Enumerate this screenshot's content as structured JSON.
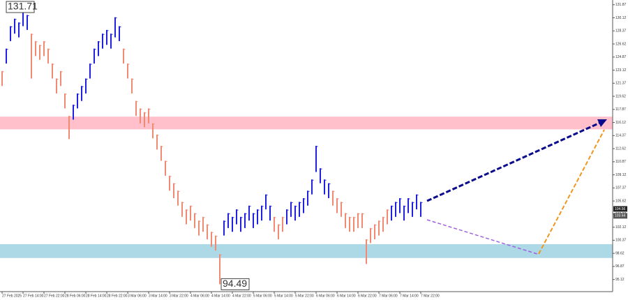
{
  "chart_data": {
    "type": "ohlc",
    "x": [
      "27 Feb 2025",
      null,
      null,
      null,
      null,
      "27 Feb 14:00",
      null,
      null,
      null,
      null,
      "27 Feb 22:00",
      null,
      null,
      null,
      null,
      "28 Feb 06:00",
      null,
      null,
      null,
      null,
      "28 Feb 14:00",
      null,
      null,
      null,
      null,
      "28 Feb 22:00",
      null,
      null,
      null,
      null,
      "3 Mar 06:00",
      null,
      null,
      null,
      null,
      "3 Mar 14:00",
      null,
      null,
      null,
      null,
      "3 Mar 22:00",
      null,
      null,
      null,
      null,
      "4 Mar 06:00",
      null,
      null,
      null,
      null,
      "4 Mar 14:00",
      null,
      null,
      null,
      null,
      "4 Mar 22:00",
      null,
      null,
      null,
      null,
      "5 Mar 06:00",
      null,
      null,
      null,
      null,
      "5 Mar 14:00",
      null,
      null,
      null,
      null,
      "5 Mar 22:00",
      null,
      null,
      null,
      null,
      "6 Mar 06:00",
      null,
      null,
      null,
      null,
      "6 Mar 14:00",
      null,
      null,
      null,
      null,
      "6 Mar 22:00",
      null,
      null,
      null,
      null,
      "7 Mar 06:00",
      null,
      null,
      null,
      null,
      "7 Mar 14:00",
      null,
      null,
      null,
      null,
      "7 Mar 22:00"
    ],
    "high": [
      123,
      126,
      129,
      130,
      129.5,
      131.71,
      130.5,
      128,
      127,
      126.5,
      127,
      126,
      124,
      122,
      123,
      120,
      117,
      118.5,
      120,
      121,
      122,
      124,
      126,
      127,
      128,
      128.5,
      128,
      130.2,
      129,
      126,
      124,
      122,
      119,
      118,
      117.5,
      118,
      116,
      114.5,
      113,
      111,
      109,
      108,
      107,
      105.5,
      104.5,
      105,
      104,
      103,
      103.5,
      102.5,
      101.5,
      101,
      98.5,
      103,
      104,
      103.5,
      104.5,
      103.5,
      104,
      105,
      104,
      104.5,
      105,
      106.5,
      105,
      103.5,
      102.5,
      103.5,
      104.5,
      105.5,
      105,
      105.5,
      106,
      107,
      108.5,
      113,
      110,
      108.5,
      108,
      107,
      106,
      105.5,
      104,
      103.5,
      103.5,
      104,
      104,
      100.5,
      102,
      102.5,
      103,
      103.5,
      104.5,
      105,
      105.5,
      106,
      105,
      106,
      105.5,
      106.5,
      105.5
    ],
    "low": [
      121,
      124,
      127,
      128,
      127.5,
      129,
      128.5,
      122,
      125,
      124.5,
      125,
      124,
      122,
      120,
      121,
      118,
      113.9,
      116.5,
      118,
      119,
      120,
      122,
      124,
      125,
      126,
      126.5,
      126,
      127.5,
      127,
      124,
      122,
      120,
      117,
      116,
      115.5,
      116,
      114,
      112.5,
      111,
      109,
      107,
      106,
      105,
      103.5,
      102.5,
      103,
      102,
      101,
      101.5,
      100.5,
      99.5,
      99,
      94.49,
      101,
      102,
      101.5,
      102.5,
      101.5,
      102,
      103,
      102,
      102.5,
      103,
      104.5,
      103,
      101.5,
      100.5,
      101.5,
      102.5,
      103.5,
      103,
      103.5,
      104,
      105,
      106.5,
      109.5,
      108,
      106.5,
      106,
      105,
      104,
      103.5,
      102,
      101.5,
      101.5,
      102,
      102,
      97.2,
      100,
      100.5,
      101,
      101.5,
      102.5,
      103,
      103.5,
      104,
      103,
      104,
      103.5,
      104.5,
      103.5
    ],
    "colors": [
      "#f08a72",
      "#2020e0",
      "#2020e0",
      "#2020e0",
      "#2020e0",
      "#2020e0",
      "#2020e0",
      "#f08a72",
      "#f08a72",
      "#f08a72",
      "#f08a72",
      "#f08a72",
      "#f08a72",
      "#f08a72",
      "#f08a72",
      "#f08a72",
      "#f08a72",
      "#2020e0",
      "#2020e0",
      "#2020e0",
      "#2020e0",
      "#2020e0",
      "#2020e0",
      "#2020e0",
      "#2020e0",
      "#2020e0",
      "#2020e0",
      "#2020e0",
      "#2020e0",
      "#f08a72",
      "#f08a72",
      "#f08a72",
      "#f08a72",
      "#f08a72",
      "#f08a72",
      "#f08a72",
      "#f08a72",
      "#f08a72",
      "#f08a72",
      "#f08a72",
      "#f08a72",
      "#f08a72",
      "#f08a72",
      "#f08a72",
      "#f08a72",
      "#f08a72",
      "#f08a72",
      "#f08a72",
      "#f08a72",
      "#f08a72",
      "#f08a72",
      "#f08a72",
      "#f08a72",
      "#2020e0",
      "#2020e0",
      "#2020e0",
      "#2020e0",
      "#2020e0",
      "#2020e0",
      "#2020e0",
      "#2020e0",
      "#2020e0",
      "#2020e0",
      "#2020e0",
      "#2020e0",
      "#f08a72",
      "#f08a72",
      "#f08a72",
      "#2020e0",
      "#2020e0",
      "#2020e0",
      "#2020e0",
      "#2020e0",
      "#2020e0",
      "#2020e0",
      "#2020e0",
      "#2020e0",
      "#2020e0",
      "#2020e0",
      "#f08a72",
      "#f08a72",
      "#f08a72",
      "#f08a72",
      "#f08a72",
      "#f08a72",
      "#f08a72",
      "#f08a72",
      "#f08a72",
      "#f08a72",
      "#f08a72",
      "#f08a72",
      "#f08a72",
      "#f08a72",
      "#2020e0",
      "#2020e0",
      "#2020e0",
      "#2020e0",
      "#2020e0",
      "#2020e0",
      "#2020e0",
      "#2020e0",
      "#2020e0"
    ],
    "ylim": [
      93.5,
      132.5
    ],
    "yticks": [
      95.12,
      96.87,
      98.62,
      100.37,
      102.12,
      103.87,
      105.62,
      107.37,
      109.12,
      110.87,
      112.62,
      114.37,
      116.12,
      117.87,
      119.62,
      121.37,
      123.12,
      124.87,
      126.62,
      128.37,
      130.12,
      131.87
    ],
    "zones": [
      {
        "from": 115.2,
        "to": 116.9,
        "color": "#ffc0cb"
      },
      {
        "from": 98.0,
        "to": 99.85,
        "color": "#add8e6"
      }
    ],
    "annotations": [
      131.71,
      94.49
    ],
    "price_markers": [
      104.56,
      103.64
    ]
  }
}
